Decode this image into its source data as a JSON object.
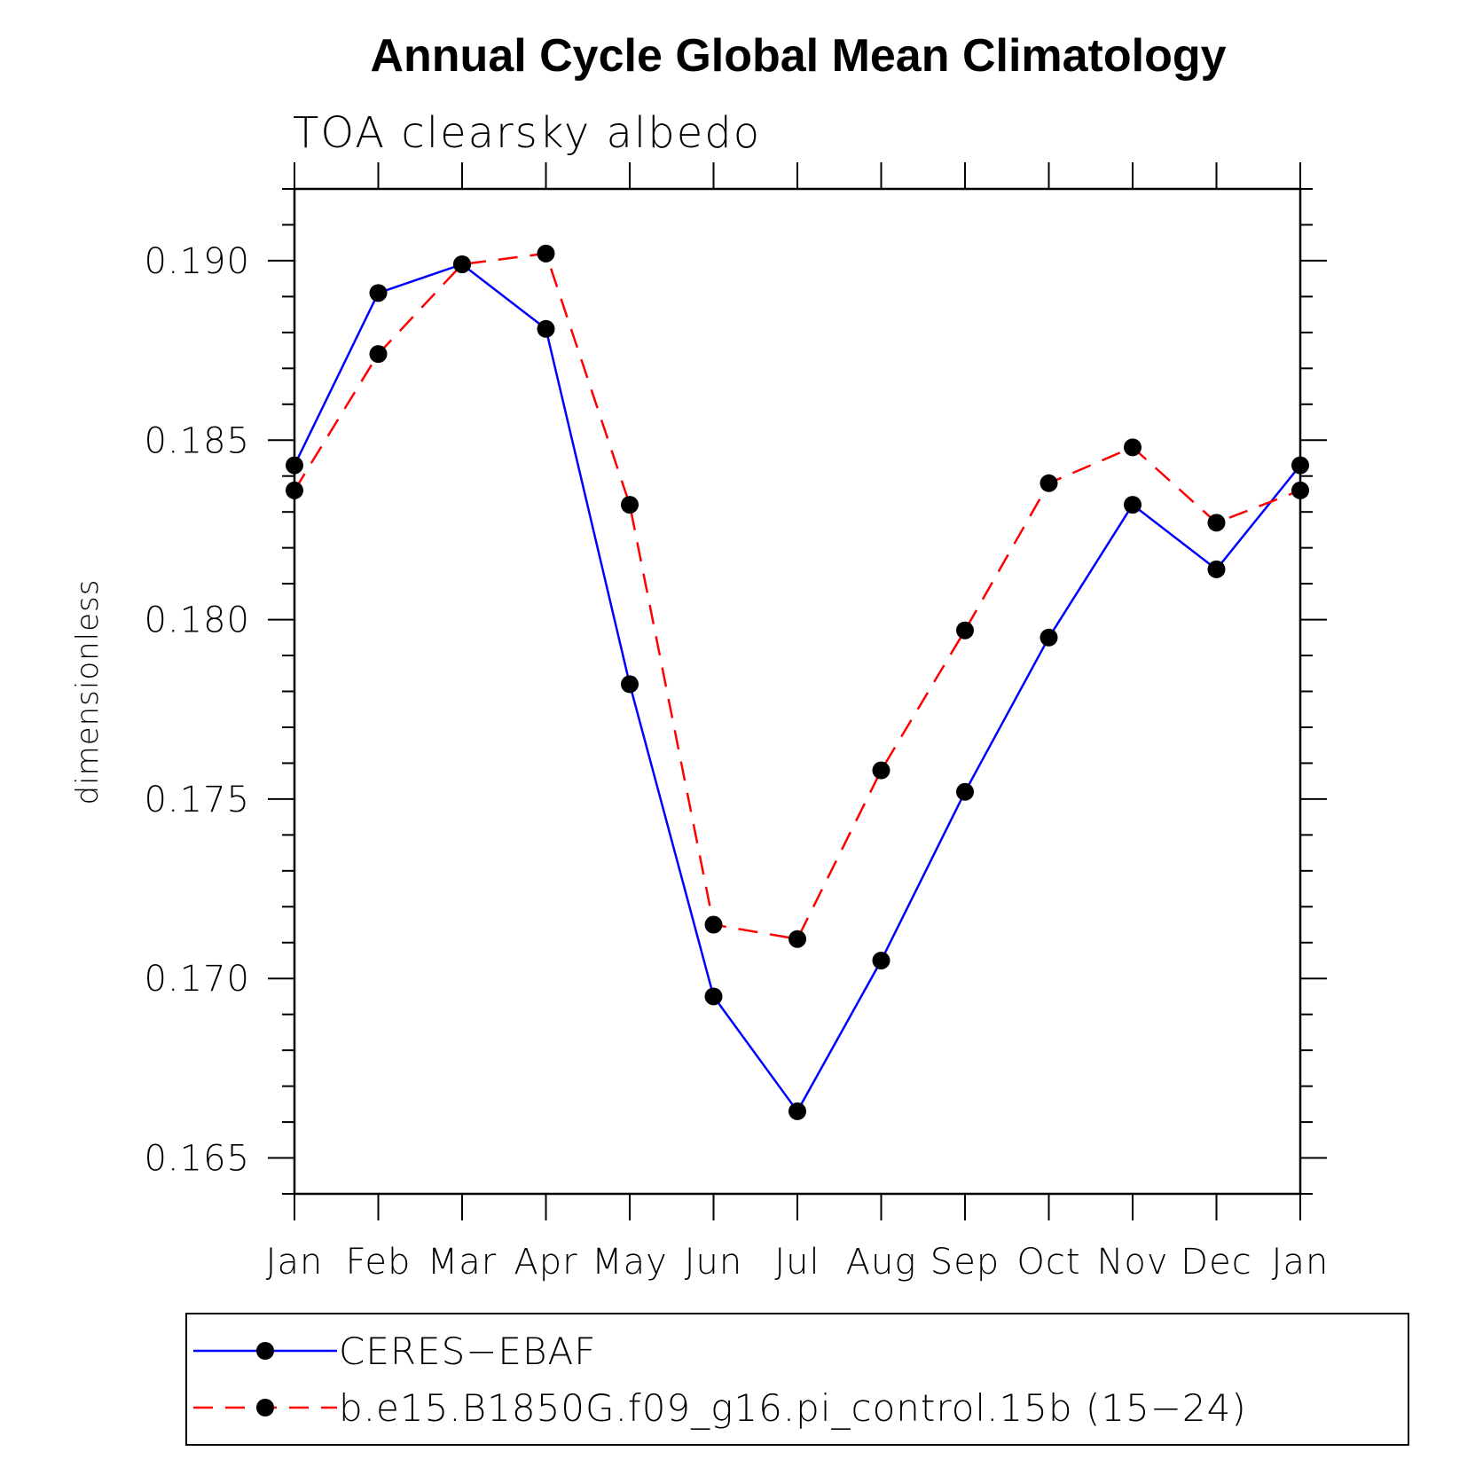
{
  "chart_data": {
    "type": "line",
    "title": "Annual Cycle Global Mean Climatology",
    "subtitle": "TOA clearsky albedo",
    "ylabel": "dimensionless",
    "xlabel": "",
    "categories": [
      "Jan",
      "Feb",
      "Mar",
      "Apr",
      "May",
      "Jun",
      "Jul",
      "Aug",
      "Sep",
      "Oct",
      "Nov",
      "Dec",
      "Jan"
    ],
    "ylim": [
      0.164,
      0.192
    ],
    "yticks": [
      "0.165",
      "0.170",
      "0.175",
      "0.180",
      "0.185",
      "0.190"
    ],
    "grid": false,
    "legend_position": "bottom",
    "series": [
      {
        "name": "CERES−EBAF",
        "color": "#0000ff",
        "line_style": "solid",
        "marker": "filled-circle",
        "values": [
          0.1843,
          0.1891,
          0.1899,
          0.1881,
          0.1782,
          0.1695,
          0.1663,
          0.1705,
          0.1752,
          0.1795,
          0.1832,
          0.1814,
          0.1843
        ]
      },
      {
        "name": "b.e15.B1850G.f09_g16.pi_control.15b (15−24)",
        "color": "#ff0000",
        "line_style": "dashed",
        "marker": "filled-circle",
        "values": [
          0.1836,
          0.1874,
          0.1899,
          0.1902,
          0.1832,
          0.1715,
          0.1711,
          0.1758,
          0.1797,
          0.1838,
          0.1848,
          0.1827,
          0.1836
        ]
      }
    ]
  }
}
